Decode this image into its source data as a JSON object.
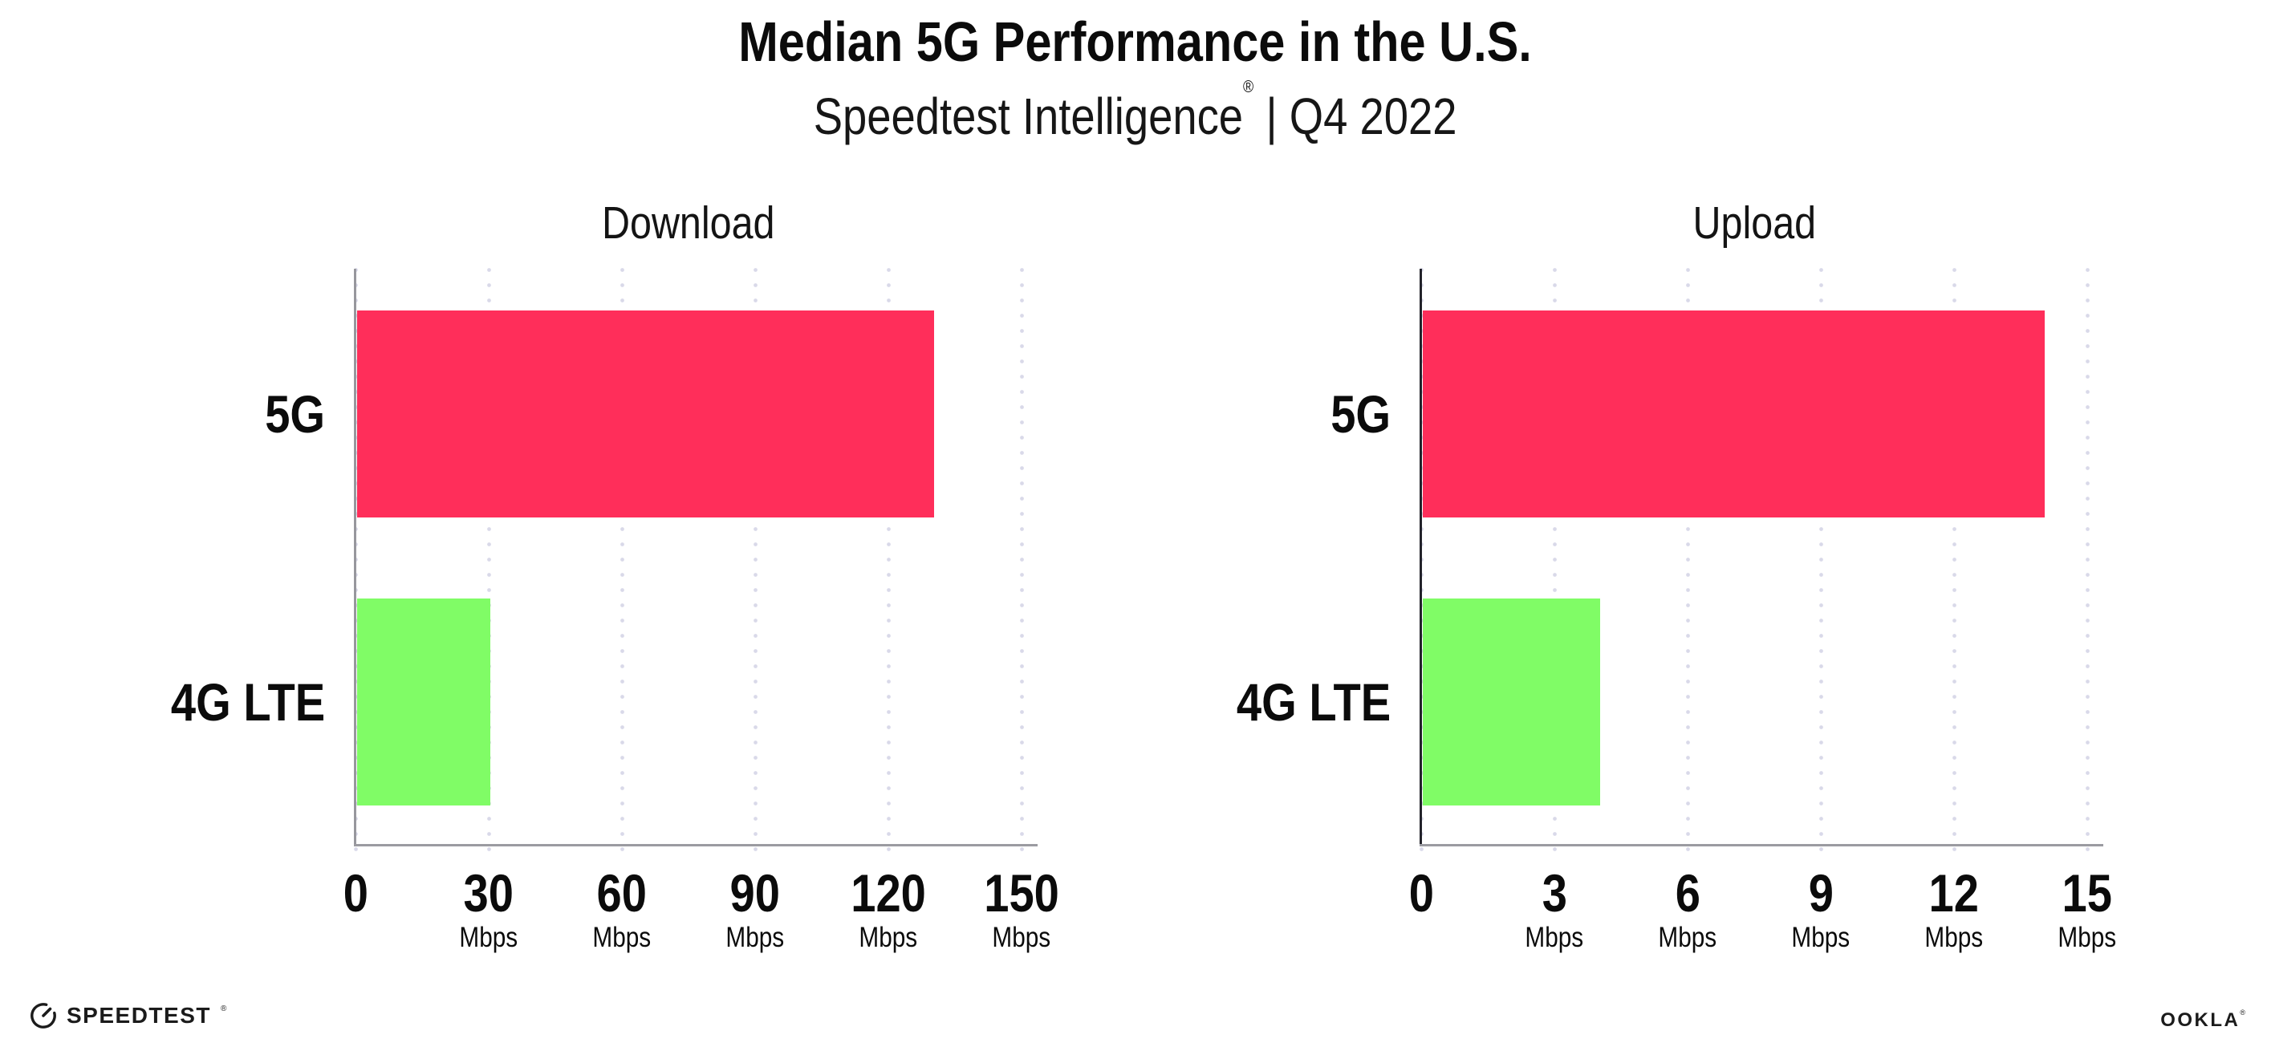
{
  "header": {
    "title": "Median 5G Performance in the U.S.",
    "subtitle_brand": "Speedtest Intelligence",
    "subtitle_reg": "®",
    "subtitle_rest": "| Q4 2022"
  },
  "chart_data": [
    {
      "type": "bar",
      "orientation": "horizontal",
      "title": "Download",
      "categories": [
        "5G",
        "4G LTE"
      ],
      "values": [
        130,
        30
      ],
      "bar_colors": [
        "#ff2e5a",
        "#80fc66"
      ],
      "x_ticks": [
        0,
        30,
        60,
        90,
        120,
        150
      ],
      "x_tick_unit": "Mbps",
      "xlim": [
        0,
        150
      ],
      "grid": "dotted-vertical",
      "legend": "none",
      "axis_color": "#97979d"
    },
    {
      "type": "bar",
      "orientation": "horizontal",
      "title": "Upload",
      "categories": [
        "5G",
        "4G LTE"
      ],
      "values": [
        14,
        4
      ],
      "bar_colors": [
        "#ff2e5a",
        "#80fc66"
      ],
      "x_ticks": [
        0,
        3,
        6,
        9,
        12,
        15
      ],
      "x_tick_unit": "Mbps",
      "xlim": [
        0,
        15
      ],
      "grid": "dotted-vertical",
      "legend": "none",
      "axis_color": "#23232b"
    }
  ],
  "colors": {
    "bar_5g": "#ff2e5a",
    "bar_4g_lte": "#80fc66",
    "gridline": "#d9d9e9",
    "x_axis_line": "#9b9ba1",
    "title_text": "#0b0b0b"
  },
  "footer": {
    "speedtest": "SPEEDTEST",
    "speedtest_reg": "®",
    "ookla": "OOKLA",
    "ookla_reg": "®"
  }
}
